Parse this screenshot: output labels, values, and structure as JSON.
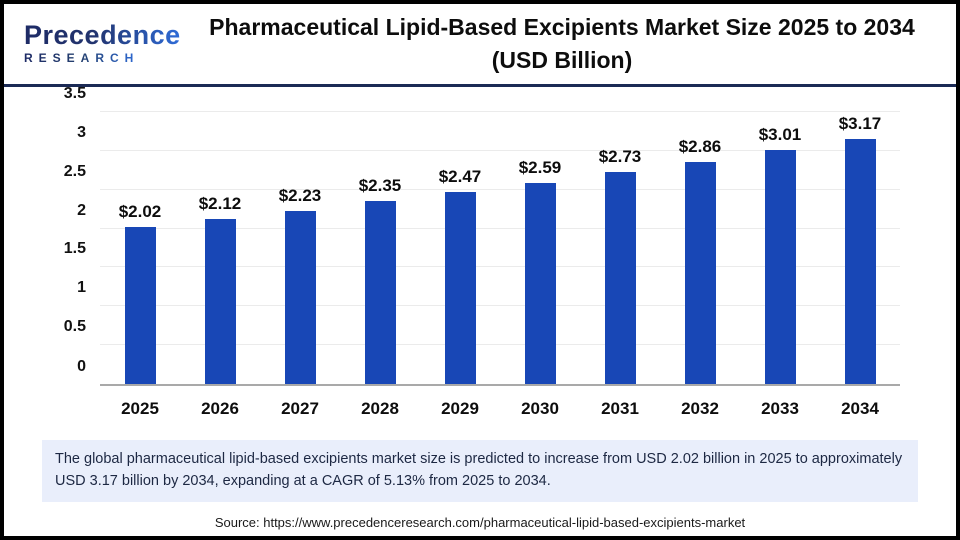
{
  "logo": {
    "line1": "Precedence",
    "line2": "RESEARCH"
  },
  "header": {
    "title_line1": "Pharmaceutical Lipid-Based Excipients Market Size 2025 to 2034",
    "title_line2": "(USD Billion)"
  },
  "chart_data": {
    "type": "bar",
    "title": "Pharmaceutical Lipid-Based Excipients Market Size 2025 to 2034 (USD Billion)",
    "categories": [
      "2025",
      "2026",
      "2027",
      "2028",
      "2029",
      "2030",
      "2031",
      "2032",
      "2033",
      "2034"
    ],
    "values": [
      2.02,
      2.12,
      2.23,
      2.35,
      2.47,
      2.59,
      2.73,
      2.86,
      3.01,
      3.17
    ],
    "value_labels": [
      "$2.02",
      "$2.12",
      "$2.23",
      "$2.35",
      "$2.47",
      "$2.59",
      "$2.73",
      "$2.86",
      "$3.01",
      "$3.17"
    ],
    "xlabel": "",
    "ylabel": "",
    "ylim": [
      0,
      3.5
    ],
    "yticks": [
      0,
      0.5,
      1,
      1.5,
      2,
      2.5,
      3,
      3.5
    ],
    "grid": true,
    "legend": false,
    "bar_color": "#1847b6"
  },
  "note": {
    "text": "The global pharmaceutical lipid-based excipients market size is predicted to increase from USD 2.02 billion in 2025 to approximately USD 3.17 billion by 2034, expanding at a CAGR of 5.13% from 2025 to 2034."
  },
  "source": {
    "text": "Source: https://www.precedenceresearch.com/pharmaceutical-lipid-based-excipients-market"
  },
  "colors": {
    "bar": "#1847b6",
    "header_divider": "#1b2a55",
    "note_background": "#e9eefb",
    "note_text": "#1d2843",
    "gridline": "#ebebeb",
    "axis_baseline": "#a9a9a9",
    "logo_navy": "#1e2b66",
    "logo_blue": "#2f6cd8",
    "page_border": "#000000"
  }
}
